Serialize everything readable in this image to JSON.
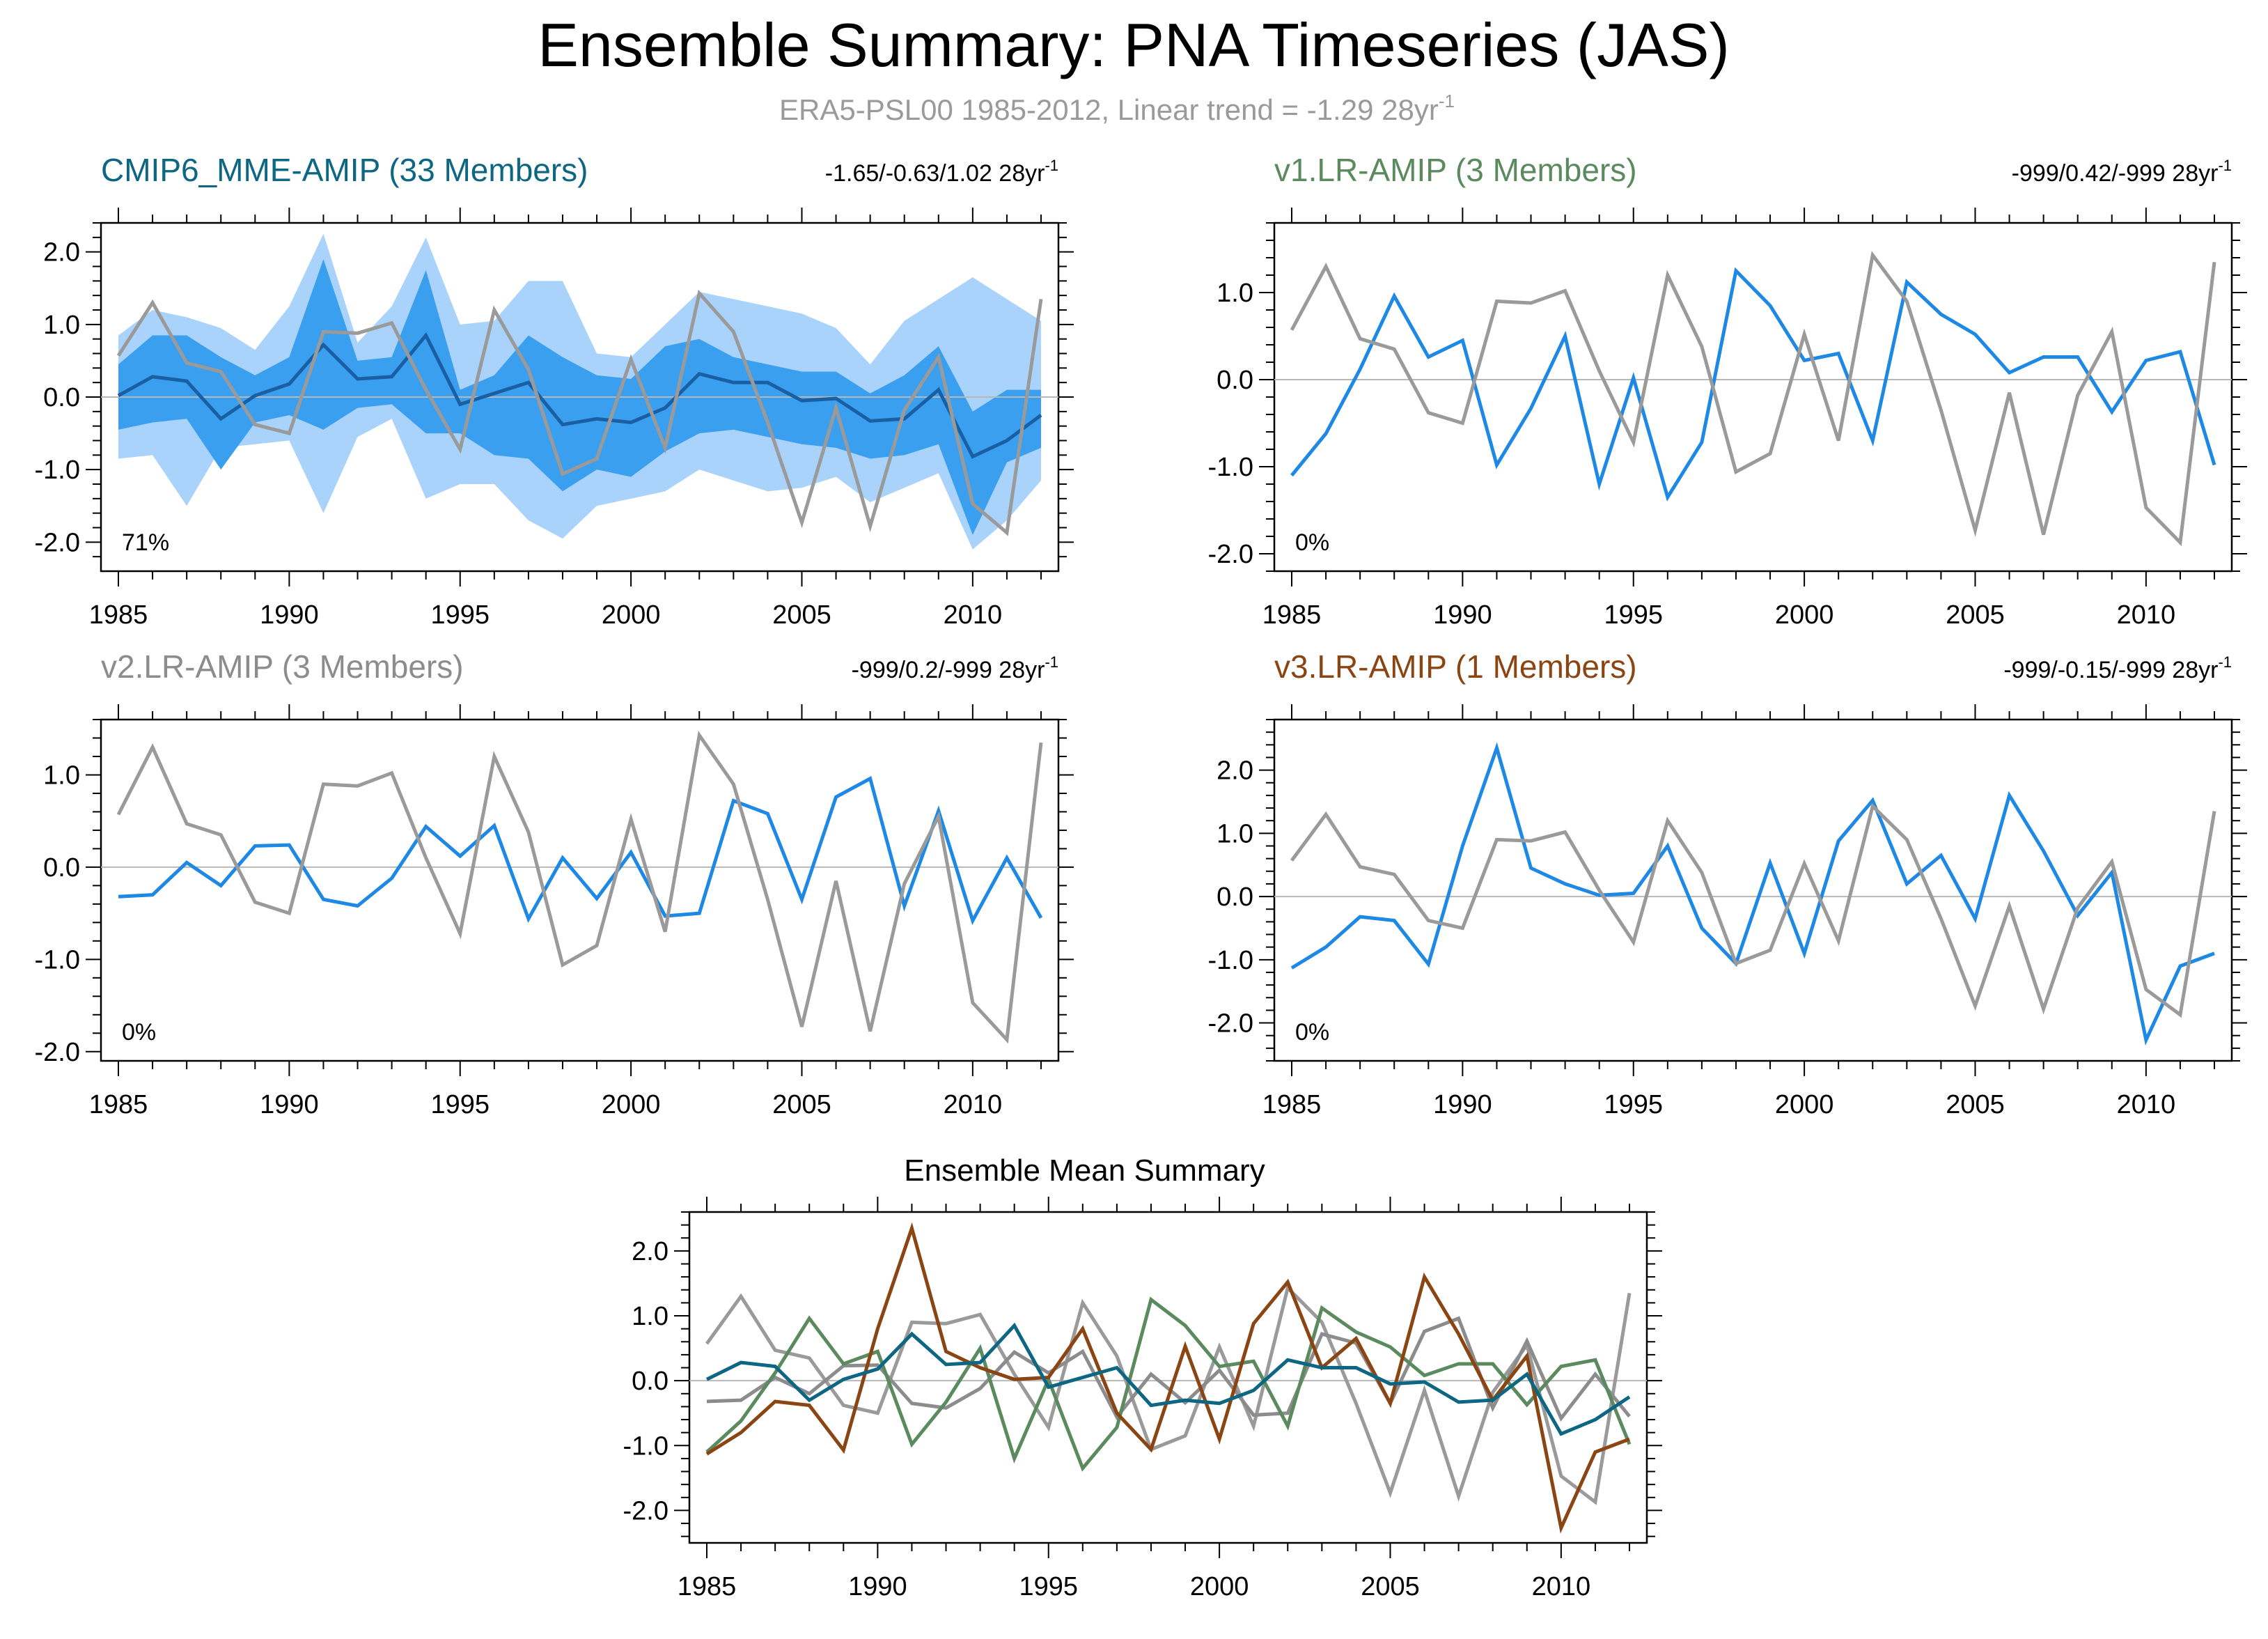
{
  "figure": {
    "title": "Ensemble Summary: PNA Timeseries (JAS)",
    "subtitle": "ERA5-PSL00 1985-2012, Linear trend = -1.29 28yr",
    "subtitle_sup": "-1"
  },
  "colors": {
    "observed": "#9a9a9a",
    "ensemble_line": "#1e88e5",
    "mme_line": "#1a5fa3",
    "band_outer": "#a9d3fb",
    "band_inner": "#3b9ff0",
    "cmip6": "#0d6682",
    "v1": "#5a8a5e",
    "v2": "#8c8c8c",
    "v3": "#8b4513"
  },
  "chart_data": [
    {
      "id": "cmip6",
      "type": "line",
      "title": "CMIP6_MME-AMIP (33 Members)",
      "title_color": "#0d6682",
      "trend_text": "-1.65/-0.63/1.02 28yr",
      "trend_sup": "-1",
      "percent_label": "71%",
      "x": [
        1985,
        1986,
        1987,
        1988,
        1989,
        1990,
        1991,
        1992,
        1993,
        1994,
        1995,
        1996,
        1997,
        1998,
        1999,
        2000,
        2001,
        2002,
        2003,
        2004,
        2005,
        2006,
        2007,
        2008,
        2009,
        2010,
        2011,
        2012
      ],
      "ylim": [
        -2.4,
        2.4
      ],
      "yticks": [
        -2.0,
        -1.0,
        0.0,
        1.0,
        2.0
      ],
      "ytick_labels": [
        "-2.0",
        "-1.0",
        "0.0",
        "1.0",
        "2.0"
      ],
      "xticks": [
        1985,
        1990,
        1995,
        2000,
        2005,
        2010
      ],
      "xtick_labels": [
        "1985",
        "1990",
        "1995",
        "2000",
        "2005",
        "2010"
      ],
      "band_outer_upper": [
        0.85,
        1.2,
        1.1,
        0.95,
        0.65,
        1.25,
        2.25,
        0.75,
        1.25,
        2.2,
        1.0,
        1.05,
        1.6,
        1.6,
        0.6,
        0.55,
        1.0,
        1.45,
        1.35,
        1.25,
        1.15,
        0.95,
        0.45,
        1.05,
        1.35,
        1.65,
        1.35,
        1.05
      ],
      "band_outer_lower": [
        -0.85,
        -0.8,
        -1.5,
        -0.7,
        -0.65,
        -0.6,
        -1.6,
        -0.55,
        -0.3,
        -1.4,
        -1.2,
        -1.2,
        -1.7,
        -1.95,
        -1.5,
        -1.4,
        -1.3,
        -1.0,
        -1.15,
        -1.3,
        -1.25,
        -1.1,
        -1.45,
        -1.25,
        -1.05,
        -2.1,
        -1.7,
        -1.15
      ],
      "band_inner_upper": [
        0.45,
        0.85,
        0.85,
        0.55,
        0.3,
        0.55,
        1.9,
        0.5,
        0.55,
        1.75,
        0.1,
        0.3,
        0.85,
        0.55,
        0.3,
        0.25,
        0.7,
        0.8,
        0.55,
        0.45,
        0.35,
        0.35,
        0.05,
        0.3,
        0.7,
        -0.2,
        0.1,
        0.1
      ],
      "band_inner_lower": [
        -0.45,
        -0.35,
        -0.3,
        -1.0,
        -0.35,
        -0.25,
        -0.45,
        -0.15,
        -0.1,
        -0.5,
        -0.5,
        -0.8,
        -0.85,
        -1.3,
        -1.0,
        -1.1,
        -0.75,
        -0.5,
        -0.45,
        -0.55,
        -0.65,
        -0.7,
        -0.85,
        -0.8,
        -0.65,
        -1.9,
        -0.9,
        -0.7
      ],
      "series": [
        {
          "name": "ensemble",
          "color": "#1a5fa3",
          "width": 5,
          "values": [
            0.02,
            0.28,
            0.22,
            -0.3,
            0.02,
            0.18,
            0.72,
            0.25,
            0.28,
            0.85,
            -0.1,
            0.05,
            0.2,
            -0.38,
            -0.3,
            -0.35,
            -0.15,
            0.32,
            0.2,
            0.2,
            -0.05,
            -0.02,
            -0.33,
            -0.3,
            0.1,
            -0.82,
            -0.6,
            -0.25
          ]
        },
        {
          "name": "observed",
          "color": "#9a9a9a",
          "width": 5,
          "values": [
            0.57,
            1.3,
            0.47,
            0.35,
            -0.38,
            -0.5,
            0.9,
            0.88,
            1.02,
            0.1,
            -0.72,
            1.2,
            0.38,
            -1.06,
            -0.85,
            0.52,
            -0.7,
            1.43,
            0.9,
            -0.35,
            -1.73,
            -0.15,
            -1.78,
            -0.18,
            0.55,
            -1.47,
            -1.87,
            1.35
          ]
        }
      ]
    },
    {
      "id": "v1",
      "type": "line",
      "title": "v1.LR-AMIP (3 Members)",
      "title_color": "#5a8a5e",
      "trend_text": "-999/0.42/-999 28yr",
      "trend_sup": "-1",
      "percent_label": "0%",
      "x": [
        1985,
        1986,
        1987,
        1988,
        1989,
        1990,
        1991,
        1992,
        1993,
        1994,
        1995,
        1996,
        1997,
        1998,
        1999,
        2000,
        2001,
        2002,
        2003,
        2004,
        2005,
        2006,
        2007,
        2008,
        2009,
        2010,
        2011,
        2012
      ],
      "ylim": [
        -2.2,
        1.8
      ],
      "yticks": [
        -2.0,
        -1.0,
        0.0,
        1.0
      ],
      "ytick_labels": [
        "-2.0",
        "-1.0",
        "0.0",
        "1.0"
      ],
      "xticks": [
        1985,
        1990,
        1995,
        2000,
        2005,
        2010
      ],
      "xtick_labels": [
        "1985",
        "1990",
        "1995",
        "2000",
        "2005",
        "2010"
      ],
      "series": [
        {
          "name": "ensemble",
          "color": "#1e88e5",
          "width": 5,
          "values": [
            -1.1,
            -0.62,
            0.12,
            0.96,
            0.26,
            0.45,
            -0.98,
            -0.33,
            0.5,
            -1.2,
            0.02,
            -1.35,
            -0.72,
            1.25,
            0.85,
            0.22,
            0.3,
            -0.7,
            1.12,
            0.75,
            0.52,
            0.08,
            0.26,
            0.26,
            -0.37,
            0.22,
            0.32,
            -0.98
          ]
        },
        {
          "name": "observed",
          "color": "#9a9a9a",
          "width": 5,
          "values": [
            0.57,
            1.3,
            0.47,
            0.35,
            -0.38,
            -0.5,
            0.9,
            0.88,
            1.02,
            0.1,
            -0.72,
            1.2,
            0.38,
            -1.06,
            -0.85,
            0.52,
            -0.7,
            1.43,
            0.9,
            -0.35,
            -1.73,
            -0.15,
            -1.78,
            -0.18,
            0.55,
            -1.47,
            -1.87,
            1.35
          ]
        }
      ]
    },
    {
      "id": "v2",
      "type": "line",
      "title": "v2.LR-AMIP (3 Members)",
      "title_color": "#8c8c8c",
      "trend_text": "-999/0.2/-999 28yr",
      "trend_sup": "-1",
      "percent_label": "0%",
      "x": [
        1985,
        1986,
        1987,
        1988,
        1989,
        1990,
        1991,
        1992,
        1993,
        1994,
        1995,
        1996,
        1997,
        1998,
        1999,
        2000,
        2001,
        2002,
        2003,
        2004,
        2005,
        2006,
        2007,
        2008,
        2009,
        2010,
        2011,
        2012
      ],
      "ylim": [
        -2.1,
        1.6
      ],
      "yticks": [
        -2.0,
        -1.0,
        0.0,
        1.0
      ],
      "ytick_labels": [
        "-2.0",
        "-1.0",
        "0.0",
        "1.0"
      ],
      "xticks": [
        1985,
        1990,
        1995,
        2000,
        2005,
        2010
      ],
      "xtick_labels": [
        "1985",
        "1990",
        "1995",
        "2000",
        "2005",
        "2010"
      ],
      "series": [
        {
          "name": "ensemble",
          "color": "#1e88e5",
          "width": 5,
          "values": [
            -0.32,
            -0.3,
            0.05,
            -0.2,
            0.23,
            0.24,
            -0.35,
            -0.42,
            -0.12,
            0.44,
            0.12,
            0.45,
            -0.56,
            0.1,
            -0.34,
            0.16,
            -0.53,
            -0.5,
            0.72,
            0.58,
            -0.35,
            0.76,
            0.96,
            -0.42,
            0.61,
            -0.58,
            0.1,
            -0.55
          ]
        },
        {
          "name": "observed",
          "color": "#9a9a9a",
          "width": 5,
          "values": [
            0.57,
            1.3,
            0.47,
            0.35,
            -0.38,
            -0.5,
            0.9,
            0.88,
            1.02,
            0.1,
            -0.72,
            1.2,
            0.38,
            -1.06,
            -0.85,
            0.52,
            -0.7,
            1.43,
            0.9,
            -0.35,
            -1.73,
            -0.15,
            -1.78,
            -0.18,
            0.55,
            -1.47,
            -1.87,
            1.35
          ]
        }
      ]
    },
    {
      "id": "v3",
      "type": "line",
      "title": "v3.LR-AMIP (1 Members)",
      "title_color": "#8b4513",
      "trend_text": "-999/-0.15/-999 28yr",
      "trend_sup": "-1",
      "percent_label": "0%",
      "x": [
        1985,
        1986,
        1987,
        1988,
        1989,
        1990,
        1991,
        1992,
        1993,
        1994,
        1995,
        1996,
        1997,
        1998,
        1999,
        2000,
        2001,
        2002,
        2003,
        2004,
        2005,
        2006,
        2007,
        2008,
        2009,
        2010,
        2011,
        2012
      ],
      "ylim": [
        -2.6,
        2.8
      ],
      "yticks": [
        -2.0,
        -1.0,
        0.0,
        1.0,
        2.0
      ],
      "ytick_labels": [
        "-2.0",
        "-1.0",
        "0.0",
        "1.0",
        "2.0"
      ],
      "xticks": [
        1985,
        1990,
        1995,
        2000,
        2005,
        2010
      ],
      "xtick_labels": [
        "1985",
        "1990",
        "1995",
        "2000",
        "2005",
        "2010"
      ],
      "series": [
        {
          "name": "ensemble",
          "color": "#1e88e5",
          "width": 5,
          "values": [
            -1.13,
            -0.8,
            -0.32,
            -0.38,
            -1.07,
            0.8,
            2.35,
            0.45,
            0.2,
            0.02,
            0.05,
            0.8,
            -0.5,
            -1.06,
            0.53,
            -0.9,
            0.88,
            1.52,
            0.2,
            0.65,
            -0.35,
            1.6,
            0.72,
            -0.3,
            0.38,
            -2.27,
            -1.1,
            -0.9
          ]
        },
        {
          "name": "observed",
          "color": "#9a9a9a",
          "width": 5,
          "values": [
            0.57,
            1.3,
            0.47,
            0.35,
            -0.38,
            -0.5,
            0.9,
            0.88,
            1.02,
            0.1,
            -0.72,
            1.2,
            0.38,
            -1.06,
            -0.85,
            0.52,
            -0.7,
            1.43,
            0.9,
            -0.35,
            -1.73,
            -0.15,
            -1.78,
            -0.18,
            0.55,
            -1.47,
            -1.87,
            1.35
          ]
        }
      ]
    },
    {
      "id": "summary",
      "type": "line",
      "title": "Ensemble Mean Summary",
      "title_color": "#000000",
      "x": [
        1985,
        1986,
        1987,
        1988,
        1989,
        1990,
        1991,
        1992,
        1993,
        1994,
        1995,
        1996,
        1997,
        1998,
        1999,
        2000,
        2001,
        2002,
        2003,
        2004,
        2005,
        2006,
        2007,
        2008,
        2009,
        2010,
        2011,
        2012
      ],
      "ylim": [
        -2.5,
        2.6
      ],
      "yticks": [
        -2.0,
        -1.0,
        0.0,
        1.0,
        2.0
      ],
      "ytick_labels": [
        "-2.0",
        "-1.0",
        "0.0",
        "1.0",
        "2.0"
      ],
      "xticks": [
        1985,
        1990,
        1995,
        2000,
        2005,
        2010
      ],
      "xtick_labels": [
        "1985",
        "1990",
        "1995",
        "2000",
        "2005",
        "2010"
      ],
      "series": [
        {
          "name": "observed",
          "color": "#9a9a9a",
          "width": 5,
          "values": [
            0.57,
            1.3,
            0.47,
            0.35,
            -0.38,
            -0.5,
            0.9,
            0.88,
            1.02,
            0.1,
            -0.72,
            1.2,
            0.38,
            -1.06,
            -0.85,
            0.52,
            -0.7,
            1.43,
            0.9,
            -0.35,
            -1.73,
            -0.15,
            -1.78,
            -0.18,
            0.55,
            -1.47,
            -1.87,
            1.35
          ]
        },
        {
          "name": "v2.LR-AMIP",
          "color": "#8c8c8c",
          "width": 5,
          "values": [
            -0.32,
            -0.3,
            0.05,
            -0.2,
            0.23,
            0.24,
            -0.35,
            -0.42,
            -0.12,
            0.44,
            0.12,
            0.45,
            -0.56,
            0.1,
            -0.34,
            0.16,
            -0.53,
            -0.5,
            0.72,
            0.58,
            -0.35,
            0.76,
            0.96,
            -0.42,
            0.61,
            -0.58,
            0.1,
            -0.55
          ]
        },
        {
          "name": "v1.LR-AMIP",
          "color": "#5a8a5e",
          "width": 5,
          "values": [
            -1.1,
            -0.62,
            0.12,
            0.96,
            0.26,
            0.45,
            -0.98,
            -0.33,
            0.5,
            -1.2,
            0.02,
            -1.35,
            -0.72,
            1.25,
            0.85,
            0.22,
            0.3,
            -0.7,
            1.12,
            0.75,
            0.52,
            0.08,
            0.26,
            0.26,
            -0.37,
            0.22,
            0.32,
            -0.98
          ]
        },
        {
          "name": "v3.LR-AMIP",
          "color": "#8b4513",
          "width": 5,
          "values": [
            -1.13,
            -0.8,
            -0.32,
            -0.38,
            -1.07,
            0.8,
            2.35,
            0.45,
            0.2,
            0.02,
            0.05,
            0.8,
            -0.5,
            -1.06,
            0.53,
            -0.9,
            0.88,
            1.52,
            0.2,
            0.65,
            -0.35,
            1.6,
            0.72,
            -0.3,
            0.38,
            -2.27,
            -1.1,
            -0.9
          ]
        },
        {
          "name": "CMIP6_MME-AMIP",
          "color": "#0d6682",
          "width": 5,
          "values": [
            0.02,
            0.28,
            0.22,
            -0.3,
            0.02,
            0.18,
            0.72,
            0.25,
            0.28,
            0.85,
            -0.1,
            0.05,
            0.2,
            -0.38,
            -0.3,
            -0.35,
            -0.15,
            0.32,
            0.2,
            0.2,
            -0.05,
            -0.02,
            -0.33,
            -0.3,
            0.1,
            -0.82,
            -0.6,
            -0.25
          ]
        }
      ]
    }
  ]
}
